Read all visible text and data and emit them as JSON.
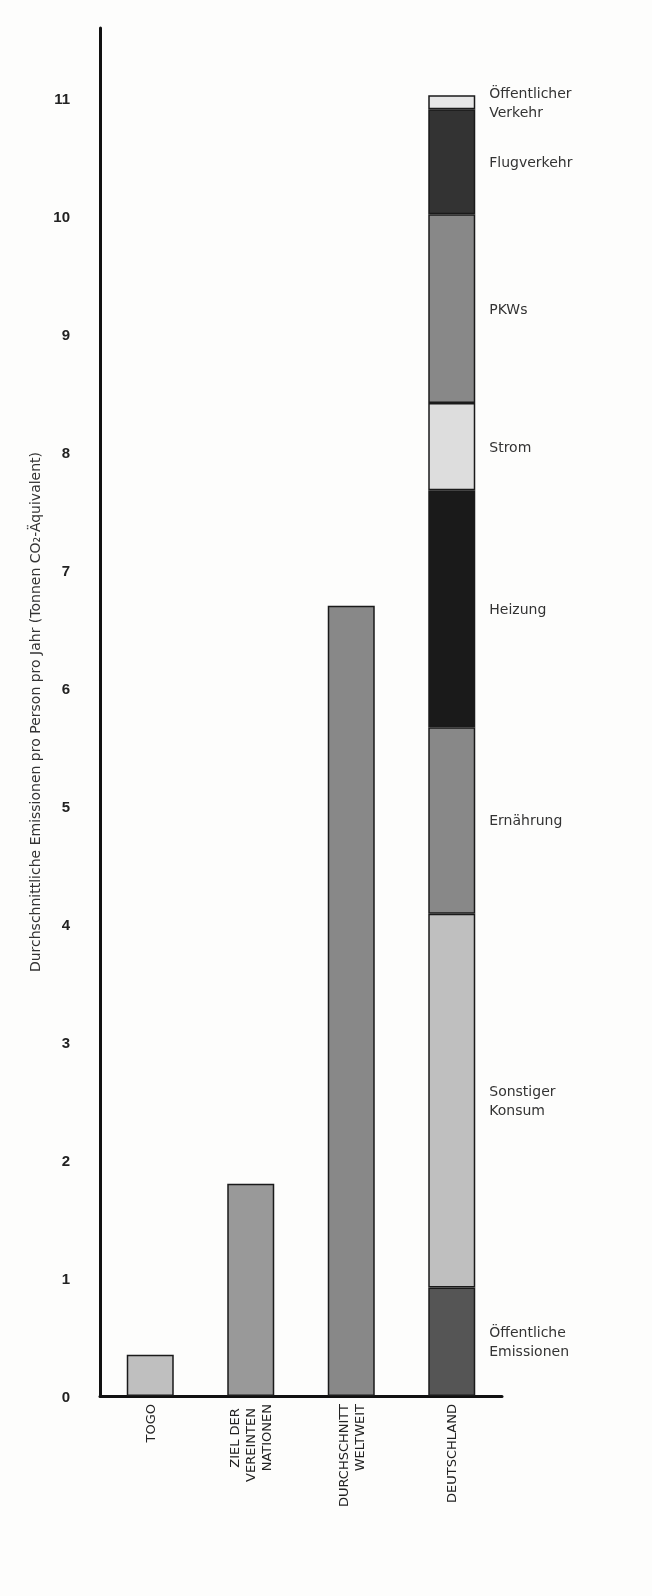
{
  "chart_data": {
    "type": "bar",
    "ylabel": "Durchschnittliche Emissionen pro Person pro Jahr (Tonnen CO₂-Äquivalent)",
    "categories": [
      "TOGO",
      "ZIEL DER VEREINTEN NATIONEN",
      "DURCHSCHNITT WELTWEIT",
      "DEUTSCHLAND"
    ],
    "stacked": true,
    "series": [
      {
        "colors": [
          "#bfbfbf",
          "#999999",
          "#888888",
          "#888888"
        ],
        "values": [
          0.35,
          1.8,
          6.7,
          null
        ]
      },
      {
        "name": "Öffentliche Emissionen",
        "color": "#555555",
        "values": [
          null,
          null,
          null,
          0.92
        ]
      },
      {
        "name": "Sonstiger Konsum",
        "color": "#bfbfbf",
        "values": [
          null,
          null,
          null,
          3.17
        ]
      },
      {
        "name": "Ernährung",
        "color": "#888888",
        "values": [
          null,
          null,
          null,
          1.58
        ]
      },
      {
        "name": "Heizung",
        "color": "#1a1a1a",
        "values": [
          null,
          null,
          null,
          2.01
        ]
      },
      {
        "name": "Strom",
        "color": "#dddddd",
        "values": [
          null,
          null,
          null,
          0.74
        ]
      },
      {
        "name": "PKWs",
        "color": "#888888",
        "values": [
          null,
          null,
          null,
          1.6
        ]
      },
      {
        "name": "Flugverkehr",
        "color": "#333333",
        "values": [
          null,
          null,
          null,
          0.89
        ]
      },
      {
        "name": "Öffentlicher Verkehr",
        "color": "#e6e6e6",
        "values": [
          null,
          null,
          null,
          0.12
        ]
      }
    ],
    "ylim": [
      0,
      11.6
    ],
    "yticks": [
      0,
      1,
      2,
      3,
      4,
      5,
      6,
      7,
      8,
      9,
      10,
      11
    ]
  }
}
